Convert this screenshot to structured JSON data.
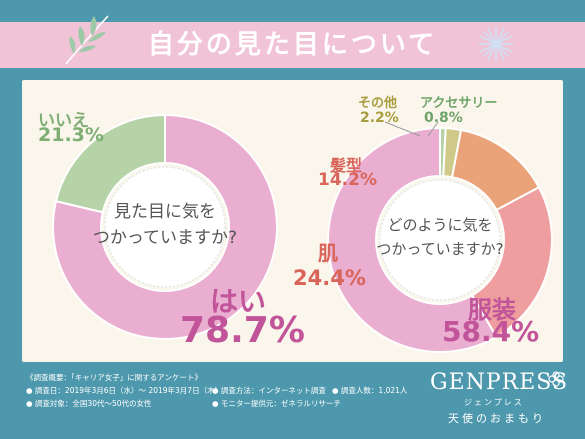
{
  "title": "自分の見た目について",
  "chart_data": [
    {
      "type": "pie",
      "center_text": [
        "見た目に気を",
        "つかっていますか?"
      ],
      "slices": [
        {
          "label": "はい",
          "value": 78.7,
          "value_text": "78.7%",
          "color": "#e9aed0"
        },
        {
          "label": "いいえ",
          "value": 21.3,
          "value_text": "21.3%",
          "color": "#b5d3a7"
        }
      ]
    },
    {
      "type": "pie",
      "center_text": [
        "どのように気を",
        "つかっていますか?"
      ],
      "slices": [
        {
          "label": "服装",
          "value": 58.4,
          "value_text": "58.4%",
          "color": "#e9aed0"
        },
        {
          "label": "肌",
          "value": 24.4,
          "value_text": "24.4%",
          "color": "#ee9e9e"
        },
        {
          "label": "髪型",
          "value": 14.2,
          "value_text": "14.2%",
          "color": "#eaa278"
        },
        {
          "label": "その他",
          "value": 2.2,
          "value_text": "2.2%",
          "color": "#cfc98a"
        },
        {
          "label": "アクセサリー",
          "value": 0.8,
          "value_text": "0.8%",
          "color": "#b5d3a7"
        }
      ]
    }
  ],
  "footer": {
    "line1": "《調査概要：「キャリア女子」に関するアンケート》",
    "period": "● 調査日：2019年3月6日（水）〜 2019年3月7日（木）",
    "method": "● 調査方法：インターネット調査",
    "count": "● 調査人数：1,021人",
    "target": "● 調査対象：全国30代〜50代の女性",
    "provider": "● モニター提供元：ゼネラルリサーチ"
  },
  "brand": {
    "name": "GENPRESS",
    "katakana": "ジェンプレス",
    "tagline": "天使のおまもり"
  },
  "colors": {
    "background": "#4e98ad",
    "title_band": "#f0c3d6",
    "panel": "#fbf6ec"
  }
}
